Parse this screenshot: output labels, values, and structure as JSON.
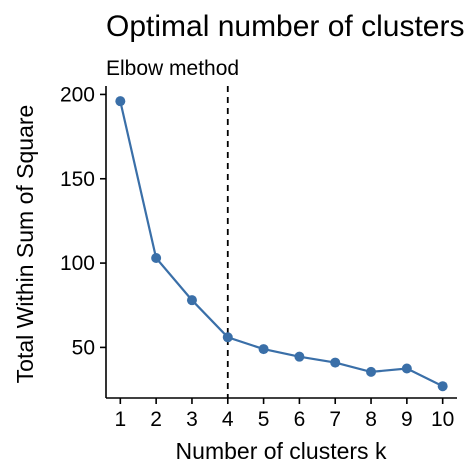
{
  "chart_data": {
    "type": "line",
    "title": "Optimal number of clusters",
    "subtitle": "Elbow method",
    "xlabel": "Number of clusters k",
    "ylabel": "Total Within Sum of Square",
    "x": [
      1,
      2,
      3,
      4,
      5,
      6,
      7,
      8,
      9,
      10
    ],
    "values": [
      196,
      103,
      78,
      56,
      49,
      44.5,
      41,
      35.5,
      37.5,
      27
    ],
    "xlim": [
      0.6,
      10.4
    ],
    "ylim": [
      20,
      205
    ],
    "xticks": [
      1,
      2,
      3,
      4,
      5,
      6,
      7,
      8,
      9,
      10
    ],
    "yticks": [
      50,
      100,
      150,
      200
    ],
    "reference_line": {
      "x": 4,
      "style": "dashed",
      "color": "#000000"
    },
    "series_color": "#3a6fa8",
    "grid": false,
    "legend": "none"
  }
}
